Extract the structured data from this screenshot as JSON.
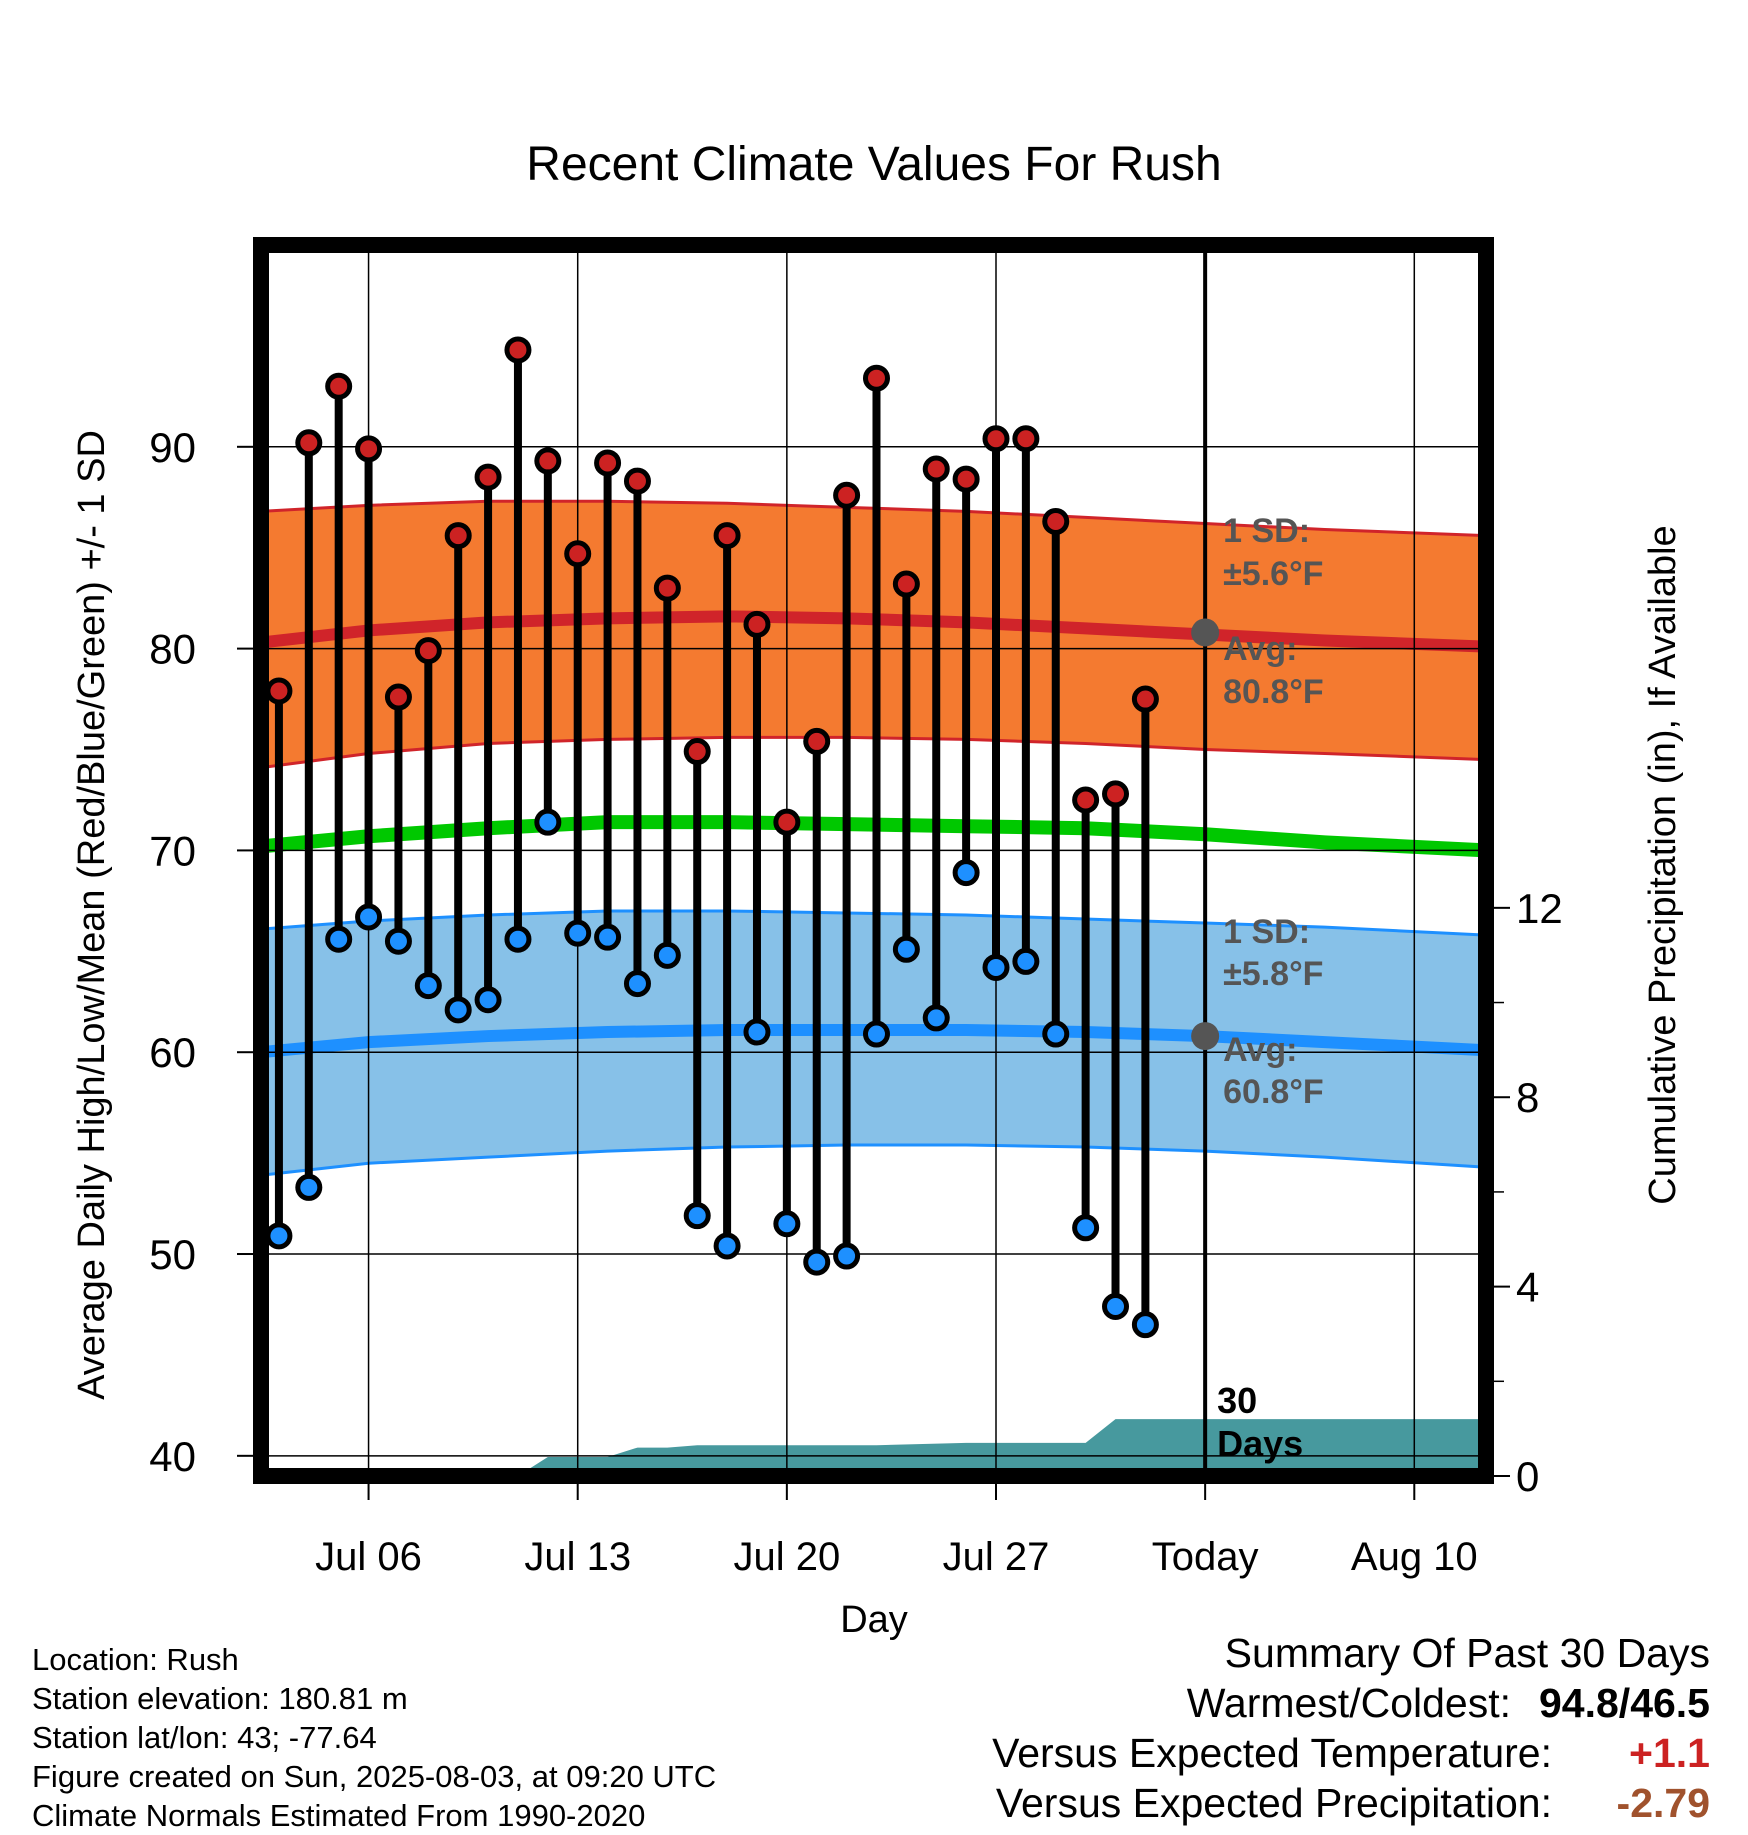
{
  "chart_data": {
    "type": "line",
    "title": "Recent Climate Values For Rush",
    "xlabel": "Day",
    "ylabel_left": "Average Daily High/Low/Mean (Red/Blue/Green) +/- 1 SD",
    "ylabel_right": "Cumulative Precipitation (in), If Available",
    "x_ticks": [
      "Jul 06",
      "Jul 13",
      "Jul 20",
      "Jul 27",
      "Today",
      "Aug 10"
    ],
    "x_tick_days": [
      6,
      13,
      20,
      27,
      34,
      41
    ],
    "y_left_ticks": [
      40,
      50,
      60,
      70,
      80,
      90
    ],
    "y_left_range": [
      39,
      100
    ],
    "y_right_ticks": [
      0,
      4,
      8,
      12
    ],
    "y_right_range": [
      0,
      26
    ],
    "x_range": [
      2.4,
      43.4
    ],
    "today_day": 34,
    "days": [
      3,
      4,
      5,
      6,
      7,
      8,
      9,
      10,
      11,
      12,
      13,
      14,
      15,
      16,
      17,
      18,
      19,
      20,
      21,
      22,
      23,
      24,
      25,
      26,
      27,
      28,
      29,
      30,
      31,
      32,
      33
    ],
    "series": [
      {
        "name": "High",
        "color": "#cc2222",
        "values": [
          77.9,
          90.2,
          93.0,
          89.9,
          77.6,
          79.9,
          85.6,
          88.5,
          94.8,
          89.3,
          84.7,
          89.2,
          88.3,
          83.0,
          74.9,
          85.6,
          81.2,
          71.4,
          75.4,
          87.6,
          93.4,
          83.2,
          88.9,
          88.4,
          90.4,
          90.4,
          86.3,
          72.5,
          72.8,
          77.5,
          null
        ]
      },
      {
        "name": "Low",
        "color": "#1e90ff",
        "values": [
          50.9,
          53.3,
          65.6,
          66.7,
          65.5,
          63.3,
          62.1,
          62.6,
          65.6,
          71.4,
          65.9,
          65.7,
          63.4,
          64.8,
          51.9,
          50.4,
          61.0,
          51.5,
          49.6,
          49.9,
          60.9,
          65.1,
          61.7,
          68.9,
          64.2,
          64.5,
          60.9,
          51.3,
          47.4,
          46.5,
          null
        ]
      }
    ],
    "normals": {
      "days": [
        2.4,
        6,
        10,
        14,
        18,
        22,
        26,
        30,
        34,
        38,
        43.4
      ],
      "high_avg": [
        80.3,
        80.9,
        81.3,
        81.5,
        81.6,
        81.5,
        81.3,
        81.0,
        80.7,
        80.4,
        80.1
      ],
      "high_upper": [
        86.8,
        87.1,
        87.3,
        87.3,
        87.2,
        87.0,
        86.8,
        86.5,
        86.2,
        85.9,
        85.6
      ],
      "high_lower": [
        74.1,
        74.8,
        75.3,
        75.5,
        75.6,
        75.6,
        75.5,
        75.3,
        75.0,
        74.8,
        74.5
      ],
      "mean_avg": [
        70.2,
        70.7,
        71.1,
        71.4,
        71.4,
        71.3,
        71.2,
        71.1,
        70.8,
        70.4,
        70.0
      ],
      "low_avg": [
        60.0,
        60.5,
        60.8,
        61.0,
        61.1,
        61.1,
        61.1,
        61.0,
        60.8,
        60.5,
        60.1
      ],
      "low_upper": [
        66.1,
        66.5,
        66.8,
        67.0,
        67.0,
        66.9,
        66.8,
        66.6,
        66.4,
        66.2,
        65.8
      ],
      "low_lower": [
        53.9,
        54.5,
        54.8,
        55.1,
        55.3,
        55.4,
        55.4,
        55.3,
        55.1,
        54.8,
        54.3
      ]
    },
    "precipitation": {
      "days": [
        2.4,
        11,
        12,
        14,
        15,
        16,
        17,
        23,
        26,
        30,
        31,
        34,
        43.4
      ],
      "values": [
        0,
        0,
        0.4,
        0.4,
        0.6,
        0.6,
        0.65,
        0.65,
        0.7,
        0.7,
        1.2,
        1.2,
        1.2
      ]
    },
    "annotations": {
      "high_sd_line1": "1 SD:",
      "high_sd_line2": "±5.6°F",
      "high_avg_line1": "Avg:",
      "high_avg_line2": "80.8°F",
      "high_avg_marker": 80.8,
      "low_sd_line1": "1 SD:",
      "low_sd_line2": "±5.8°F",
      "low_avg_line1": "Avg:",
      "low_avg_line2": "60.8°F",
      "low_avg_marker": 60.8,
      "period_line1": "30",
      "period_line2": "Days"
    },
    "colors": {
      "high_band": "#f47a30",
      "high_line": "#d0242a",
      "mean_line": "#00c800",
      "low_band": "#87c1e8",
      "low_line": "#1e90ff",
      "precip": "#47999e",
      "marker_today": "#555555"
    }
  },
  "info": {
    "location": "Location: Rush",
    "elevation": "Station elevation: 180.81 m",
    "latlon": "Station lat/lon: 43; -77.64",
    "created": "Figure created on Sun, 2025-08-03, at 09:20 UTC",
    "normals": "Climate Normals Estimated From 1990-2020"
  },
  "summary": {
    "title": "Summary Of Past 30 Days",
    "warm_cold_label": "Warmest/Coldest:",
    "warm_cold_value": "94.8/46.5",
    "temp_label": "Versus Expected Temperature:",
    "temp_value": "+1.1",
    "temp_color": "#cc2222",
    "precip_label": "Versus Expected Precipitation:",
    "precip_value": "-2.79",
    "precip_color": "#a0522d"
  }
}
